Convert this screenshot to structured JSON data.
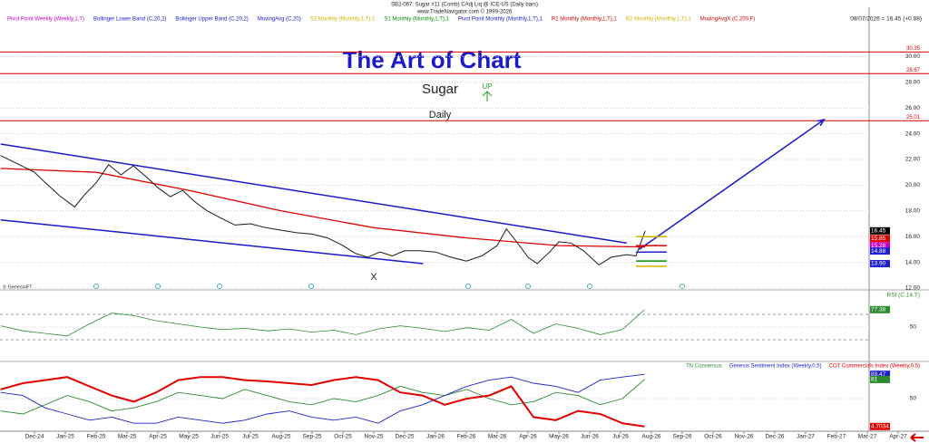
{
  "chart_data": [
    {
      "type": "line",
      "header": {
        "symbol": "SB2-067:  Sugar #11 (Comb) CAdj Liq @ ICE-US  (Daily bars)",
        "site": "www.TradeNavigator.com © 1999-2026"
      },
      "last_quote": "08/07/2026 = 16.45 (+0.88)",
      "title": "The Art of Chart",
      "subtitle": "Sugar",
      "signal": "UP",
      "interval": "Daily",
      "mark_text": "X",
      "credit": "© GenesisFT",
      "xlim": [
        -1.12,
        27.06
      ],
      "xticks": [
        {
          "value": 0,
          "label": "Dec-24"
        },
        {
          "value": 1,
          "label": "Jan-25"
        },
        {
          "value": 2,
          "label": "Feb-25"
        },
        {
          "value": 3,
          "label": "Mar-25"
        },
        {
          "value": 4,
          "label": "Apr-25"
        },
        {
          "value": 5,
          "label": "May-25"
        },
        {
          "value": 6,
          "label": "Jun-25"
        },
        {
          "value": 7,
          "label": "Jul-25"
        },
        {
          "value": 8,
          "label": "Aug-25"
        },
        {
          "value": 9,
          "label": "Sep-25"
        },
        {
          "value": 10,
          "label": "Oct-25"
        },
        {
          "value": 11,
          "label": "Nov-25"
        },
        {
          "value": 12,
          "label": "Dec-25"
        },
        {
          "value": 13,
          "label": "Jan-26"
        },
        {
          "value": 14,
          "label": "Feb-26"
        },
        {
          "value": 15,
          "label": "Mar-26"
        },
        {
          "value": 16,
          "label": "Apr-26"
        },
        {
          "value": 17,
          "label": "May-26"
        },
        {
          "value": 18,
          "label": "Jun-26"
        },
        {
          "value": 19,
          "label": "Jul-26"
        },
        {
          "value": 20,
          "label": "Aug-26"
        },
        {
          "value": 21,
          "label": "Sep-26"
        },
        {
          "value": 22,
          "label": "Oct-26"
        },
        {
          "value": 23,
          "label": "Nov-26"
        },
        {
          "value": 24,
          "label": "Dec-26"
        },
        {
          "value": 25,
          "label": "Jan-27"
        },
        {
          "value": 26,
          "label": "Feb-27"
        },
        {
          "value": 27,
          "label": "Mar-27"
        },
        {
          "value": 28,
          "label": "Apr-27"
        }
      ],
      "ylim": [
        12,
        33.69
      ],
      "yticks": [
        {
          "value": 12,
          "label": "12.00"
        },
        {
          "value": 14,
          "label": "14.00"
        },
        {
          "value": 16,
          "label": "16.00"
        },
        {
          "value": 18,
          "label": "18.00"
        },
        {
          "value": 20,
          "label": "20.00"
        },
        {
          "value": 22,
          "label": "22.00"
        },
        {
          "value": 24,
          "label": "24.00"
        },
        {
          "value": 26,
          "label": "26.00"
        },
        {
          "value": 28,
          "label": "28.00"
        },
        {
          "value": 30,
          "label": "30.00"
        }
      ],
      "grid": true,
      "levels": [
        {
          "value": 30.35,
          "label": "30.35"
        },
        {
          "value": 28.67,
          "label": "28.67"
        },
        {
          "value": 25.01,
          "label": "25.01"
        }
      ],
      "level_color": "#d00000",
      "price": {
        "color": "#1a1a1a",
        "x": [
          -1.1,
          -0.5,
          0,
          0.3,
          0.8,
          1.3,
          1.6,
          2,
          2.4,
          2.8,
          3.2,
          3.6,
          4,
          4.4,
          4.8,
          5.2,
          5.6,
          6,
          6.5,
          7,
          7.5,
          8,
          8.5,
          9,
          9.5,
          10,
          10.4,
          10.8,
          11.2,
          11.6,
          12,
          12.5,
          13,
          13.5,
          14,
          14.5,
          15,
          15.3,
          15.6,
          16,
          16.3,
          16.7,
          17,
          17.4,
          17.8,
          18.3,
          18.7,
          19.2,
          19.5,
          19.8
        ],
        "values": [
          22.3,
          21.6,
          21.0,
          20.3,
          19.2,
          18.3,
          19.2,
          20.2,
          21.6,
          20.8,
          21.5,
          20.7,
          19.8,
          19.1,
          19.6,
          18.7,
          18.0,
          17.5,
          16.9,
          17.0,
          16.7,
          16.5,
          16.3,
          16.2,
          15.9,
          15.3,
          14.7,
          14.4,
          14.8,
          14.5,
          14.9,
          14.9,
          14.8,
          14.4,
          14.1,
          14.5,
          15.3,
          16.6,
          15.7,
          14.4,
          13.9,
          14.8,
          15.6,
          15.5,
          14.9,
          13.8,
          14.4,
          14.6,
          14.5,
          16.45
        ]
      },
      "series": [
        {
          "name": "Pivot Point Weekly (Weekly,1,T)",
          "color": "#cc00cc"
        },
        {
          "name": "Bollinger Lower Band (C,20,2)",
          "color": "#2020d0"
        },
        {
          "name": "Bollinger Upper Band (C,20,2)",
          "color": "#2020d0"
        },
        {
          "name": "MovingAvg (C,20)",
          "color": "#2020d0"
        },
        {
          "name": "S2 Monthly (Monthly,1,T),1",
          "color": "#c8b400"
        },
        {
          "name": "S1 Monthly (Monthly,1,T),1",
          "color": "#009000"
        },
        {
          "name": "Pivot Point Monthly (Monthly,1,T),1",
          "color": "#2020d0"
        },
        {
          "name": "R1 Monthly (Monthly,1,T),1",
          "color": "#d00000"
        },
        {
          "name": "R2 Monthly (Monthly,1,T),1",
          "color": "#c8b400"
        },
        {
          "name": "MovingAvgX (C,200,F)",
          "color": "#e00000",
          "x": [
            -1.1,
            2,
            5,
            8,
            11,
            14,
            17,
            19.8
          ],
          "values": [
            21.3,
            21.0,
            19.6,
            18.0,
            16.7,
            15.9,
            15.3,
            15.2
          ]
        }
      ],
      "pivots": [
        {
          "value": 16.0,
          "color": "#c8b400"
        },
        {
          "value": 15.3,
          "color": "#d00000"
        },
        {
          "value": 14.8,
          "color": "#2020d0"
        },
        {
          "value": 14.1,
          "color": "#009000"
        },
        {
          "value": 13.7,
          "color": "#c8b400"
        }
      ],
      "trendlines": {
        "color": "#1a1acc",
        "lines": [
          {
            "x": [
              -1.1,
              19.2
            ],
            "values": [
              23.2,
              15.5
            ]
          },
          {
            "x": [
              -1.1,
              12.6
            ],
            "values": [
              17.3,
              13.9
            ]
          },
          {
            "x": [
              19.6,
              25.6
            ],
            "values": [
              15.0,
              25.1
            ]
          }
        ]
      },
      "value_tags": [
        {
          "value": 16.45,
          "label": "16.45",
          "color": "#000000"
        },
        {
          "value": 15.85,
          "label": "15.85",
          "color": "#e00000"
        },
        {
          "value": 15.28,
          "label": "15.28",
          "color": "#cc00cc"
        },
        {
          "value": 14.88,
          "label": "14.88",
          "color": "#2020d0"
        },
        {
          "value": 13.9,
          "label": "13.90",
          "color": "#2020d0"
        }
      ]
    },
    {
      "type": "line",
      "title": "RSI (C,14,T)",
      "color": "#2e8b2e",
      "ylim": [
        0,
        100
      ],
      "yticks": [
        50
      ],
      "levels": [
        30,
        70
      ],
      "x": [
        -1.1,
        -0.38,
        0.34,
        1.06,
        1.78,
        2.5,
        3.22,
        3.94,
        4.66,
        5.38,
        6.1,
        6.82,
        7.54,
        8.26,
        8.98,
        9.7,
        10.42,
        11.14,
        11.86,
        12.58,
        13.3,
        14.02,
        14.74,
        15.46,
        16.18,
        16.9,
        17.62,
        18.34,
        19.06,
        19.78
      ],
      "values": [
        52,
        44,
        40,
        36,
        55,
        72,
        68,
        60,
        55,
        50,
        46,
        48,
        44,
        47,
        42,
        45,
        38,
        47,
        52,
        48,
        43,
        49,
        45,
        62,
        40,
        55,
        48,
        38,
        46,
        77.38
      ],
      "value_tag": {
        "value": 77.38,
        "label": "77.38",
        "color": "#2e8b2e"
      }
    },
    {
      "type": "line",
      "ylim": [
        0,
        100
      ],
      "yticks": [
        50
      ],
      "x": [
        -1.1,
        -0.38,
        0.34,
        1.06,
        1.78,
        2.5,
        3.22,
        3.94,
        4.66,
        5.38,
        6.1,
        6.82,
        7.54,
        8.26,
        8.98,
        9.7,
        10.42,
        11.14,
        11.86,
        12.58,
        13.3,
        14.02,
        14.74,
        15.46,
        16.18,
        16.9,
        17.62,
        18.34,
        19.06,
        19.78
      ],
      "series": [
        {
          "name": "TN Consensus",
          "color": "#2e8b2e",
          "values": [
            30,
            25,
            40,
            55,
            45,
            30,
            35,
            45,
            60,
            55,
            50,
            65,
            55,
            45,
            40,
            50,
            45,
            55,
            70,
            60,
            55,
            65,
            50,
            40,
            45,
            60,
            55,
            40,
            50,
            81
          ]
        },
        {
          "name": "Genesis Sentiment Index (Weekly,0.5)",
          "color": "#2020d0",
          "values": [
            60,
            55,
            35,
            25,
            15,
            20,
            10,
            10,
            20,
            15,
            10,
            15,
            25,
            30,
            20,
            15,
            20,
            10,
            30,
            40,
            55,
            70,
            80,
            85,
            75,
            70,
            60,
            80,
            85,
            89.47
          ]
        },
        {
          "name": "COT Commercials Index (Weekly,0.5)",
          "color": "#e00000",
          "values": [
            65,
            75,
            80,
            85,
            70,
            55,
            45,
            60,
            80,
            85,
            85,
            80,
            78,
            75,
            72,
            80,
            85,
            80,
            60,
            55,
            40,
            50,
            55,
            70,
            20,
            15,
            30,
            25,
            10,
            4.7034
          ]
        }
      ],
      "value_tags": [
        {
          "value": 89.47,
          "label": "89.47",
          "color": "#2020d0"
        },
        {
          "value": 81,
          "label": "81",
          "color": "#2e8b2e"
        },
        {
          "value": 4.7034,
          "label": "4.7034",
          "color": "#e00000"
        }
      ]
    }
  ]
}
